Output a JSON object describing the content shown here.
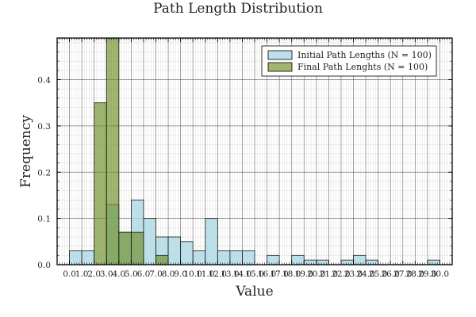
{
  "chart_data": {
    "type": "bar",
    "title": "Path Length Distribution",
    "xlabel": "Value",
    "ylabel": "Frequency",
    "xlim": [
      -1,
      31
    ],
    "ylim": [
      0,
      0.49
    ],
    "bin_width": 1,
    "x_ticks": [
      "0.0",
      "1.0",
      "2.0",
      "3.0",
      "4.0",
      "5.0",
      "6.0",
      "7.0",
      "8.0",
      "9.0",
      "10.0",
      "11.0",
      "12.0",
      "13.0",
      "14.0",
      "15.0",
      "16.0",
      "17.0",
      "18.0",
      "19.0",
      "20.0",
      "21.0",
      "22.0",
      "23.0",
      "24.0",
      "25.0",
      "26.0",
      "27.0",
      "28.0",
      "29.0",
      "30.0"
    ],
    "y_ticks": [
      "0.0",
      "0.1",
      "0.2",
      "0.3",
      "0.4"
    ],
    "grid": true,
    "legend_position": "top-right",
    "series": [
      {
        "name": "Initial Path Lengths (N = 100)",
        "color": "#ADD8E6",
        "bin_starts": [
          0,
          1,
          2,
          3,
          4,
          5,
          6,
          7,
          8,
          9,
          10,
          11,
          12,
          13,
          14,
          15,
          16,
          17,
          18,
          19,
          20,
          21,
          22,
          23,
          24,
          25,
          26,
          27,
          28,
          29
        ],
        "values": [
          0.03,
          0.03,
          0,
          0.13,
          0.07,
          0.14,
          0.1,
          0.06,
          0.06,
          0.05,
          0.03,
          0.1,
          0.03,
          0.03,
          0.03,
          0,
          0.02,
          0,
          0.02,
          0.01,
          0.01,
          0,
          0.01,
          0.02,
          0.01,
          0,
          0,
          0,
          0,
          0.01
        ]
      },
      {
        "name": "Final Path Lenghts (N = 100)",
        "color": "#6B8E23",
        "bin_starts": [
          2,
          3,
          4,
          5,
          6,
          7,
          8
        ],
        "values": [
          0.35,
          0.49,
          0.07,
          0.07,
          0,
          0.02,
          0
        ]
      }
    ]
  }
}
